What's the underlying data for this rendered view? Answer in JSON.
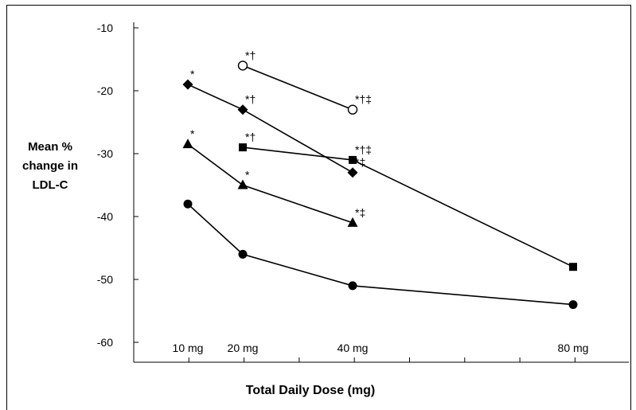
{
  "chart_data": {
    "type": "line",
    "xlabel": "Total Daily Dose (mg)",
    "ylabel_lines": [
      "Mean %",
      "change in",
      "LDL-C"
    ],
    "x_categories": [
      "10 mg",
      "20 mg",
      "40 mg",
      "80 mg"
    ],
    "x_values": [
      10,
      20,
      40,
      80
    ],
    "ylim": [
      -63,
      -10
    ],
    "y_ticks": [
      -10,
      -20,
      -30,
      -40,
      -50,
      -60
    ],
    "grid": false,
    "series": [
      {
        "marker": "circle-open",
        "points": [
          {
            "x": 20,
            "y": -16,
            "annotation": "*†"
          },
          {
            "x": 40,
            "y": -23,
            "annotation": "*†‡"
          }
        ]
      },
      {
        "marker": "diamond",
        "points": [
          {
            "x": 10,
            "y": -19,
            "annotation": "*"
          },
          {
            "x": 20,
            "y": -23,
            "annotation": "*†"
          },
          {
            "x": 40,
            "y": -33,
            "annotation": "*‡"
          }
        ]
      },
      {
        "marker": "square",
        "points": [
          {
            "x": 20,
            "y": -29,
            "annotation": "*†"
          },
          {
            "x": 40,
            "y": -31,
            "annotation": "*†‡"
          },
          {
            "x": 80,
            "y": -48,
            "annotation": ""
          }
        ]
      },
      {
        "marker": "triangle",
        "points": [
          {
            "x": 10,
            "y": -28.5,
            "annotation": "*"
          },
          {
            "x": 20,
            "y": -35,
            "annotation": "*"
          },
          {
            "x": 40,
            "y": -41,
            "annotation": "*‡"
          }
        ]
      },
      {
        "marker": "circle-filled",
        "points": [
          {
            "x": 10,
            "y": -38,
            "annotation": ""
          },
          {
            "x": 20,
            "y": -46,
            "annotation": ""
          },
          {
            "x": 40,
            "y": -51,
            "annotation": ""
          },
          {
            "x": 80,
            "y": -54,
            "annotation": ""
          }
        ]
      }
    ]
  }
}
